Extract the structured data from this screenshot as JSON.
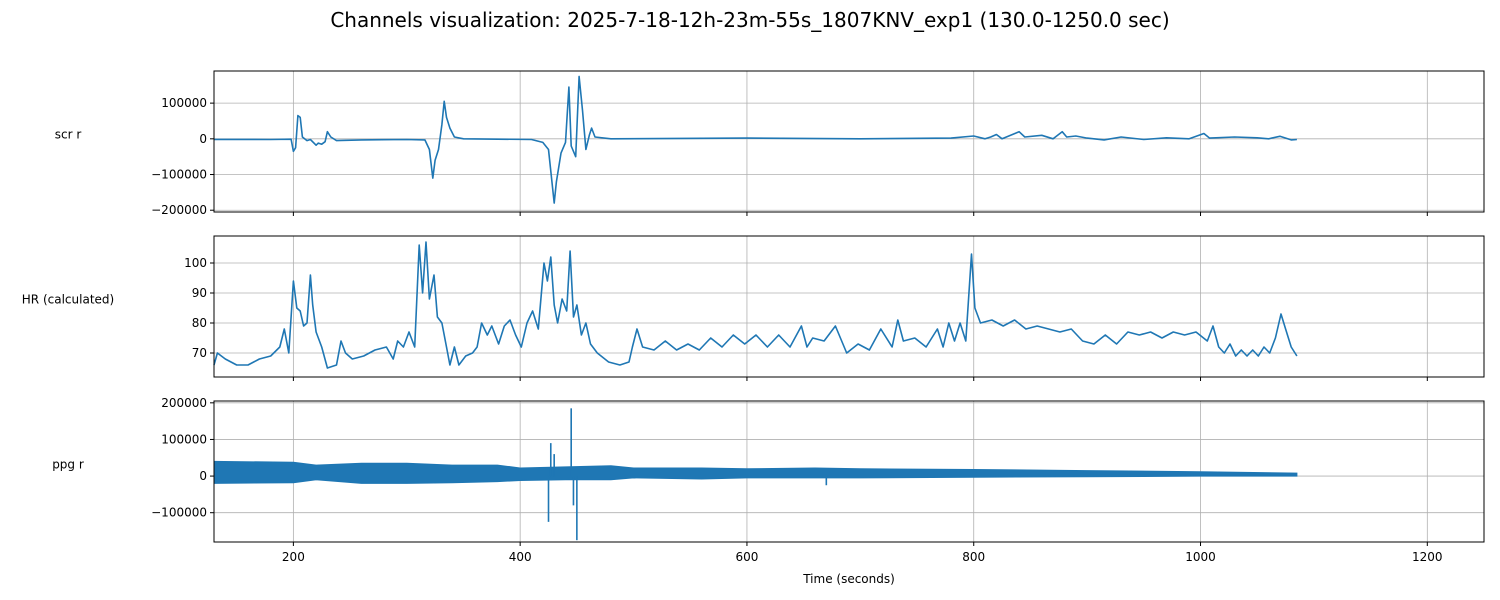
{
  "figure": {
    "title": "Channels visualization: 2025-7-18-12h-23m-55s_1807KNV_exp1 (130.0-1250.0 sec)",
    "xlabel": "Time (seconds)"
  },
  "colors": {
    "line": "#1f77b4",
    "grid": "#b0b0b0",
    "axes": "#000000"
  },
  "chart_data": [
    {
      "type": "line",
      "ylabel": "scr r",
      "xlim": [
        130,
        1250
      ],
      "ylim": [
        -205000,
        190000
      ],
      "xticks": [
        200,
        400,
        600,
        800,
        1000,
        1200
      ],
      "yticks": [
        -200000,
        -100000,
        0,
        100000
      ],
      "grid": true,
      "series": [
        {
          "points": [
            [
              130,
              -1500
            ],
            [
              180,
              -1800
            ],
            [
              198,
              -1000
            ],
            [
              200,
              -35000
            ],
            [
              202,
              -25000
            ],
            [
              204,
              65000
            ],
            [
              206,
              60000
            ],
            [
              208,
              5000
            ],
            [
              212,
              -5000
            ],
            [
              215,
              -2000
            ],
            [
              220,
              -18000
            ],
            [
              222,
              -12000
            ],
            [
              225,
              -15000
            ],
            [
              228,
              -8000
            ],
            [
              230,
              20000
            ],
            [
              233,
              5000
            ],
            [
              238,
              -5000
            ],
            [
              260,
              -3000
            ],
            [
              300,
              -2000
            ],
            [
              316,
              -3000
            ],
            [
              320,
              -30000
            ],
            [
              323,
              -110000
            ],
            [
              325,
              -60000
            ],
            [
              328,
              -30000
            ],
            [
              331,
              40000
            ],
            [
              333,
              105000
            ],
            [
              335,
              60000
            ],
            [
              338,
              30000
            ],
            [
              342,
              5000
            ],
            [
              350,
              0
            ],
            [
              410,
              -2000
            ],
            [
              420,
              -10000
            ],
            [
              425,
              -30000
            ],
            [
              430,
              -180000
            ],
            [
              432,
              -120000
            ],
            [
              436,
              -40000
            ],
            [
              440,
              -10000
            ],
            [
              443,
              145000
            ],
            [
              445,
              -20000
            ],
            [
              449,
              -50000
            ],
            [
              452,
              175000
            ],
            [
              455,
              80000
            ],
            [
              458,
              -30000
            ],
            [
              461,
              10000
            ],
            [
              463,
              30000
            ],
            [
              466,
              5000
            ],
            [
              480,
              0
            ],
            [
              600,
              2000
            ],
            [
              700,
              0
            ],
            [
              780,
              2000
            ],
            [
              800,
              8000
            ],
            [
              810,
              0
            ],
            [
              815,
              5000
            ],
            [
              820,
              12000
            ],
            [
              825,
              0
            ],
            [
              840,
              20000
            ],
            [
              845,
              5000
            ],
            [
              860,
              10000
            ],
            [
              870,
              0
            ],
            [
              878,
              20000
            ],
            [
              882,
              5000
            ],
            [
              890,
              8000
            ],
            [
              900,
              2000
            ],
            [
              915,
              -3000
            ],
            [
              930,
              5000
            ],
            [
              950,
              -2000
            ],
            [
              970,
              3000
            ],
            [
              990,
              0
            ],
            [
              1003,
              15000
            ],
            [
              1008,
              2000
            ],
            [
              1030,
              5000
            ],
            [
              1050,
              3000
            ],
            [
              1060,
              0
            ],
            [
              1070,
              7000
            ],
            [
              1080,
              -3000
            ],
            [
              1085,
              -2000
            ]
          ]
        }
      ]
    },
    {
      "type": "line",
      "ylabel": "HR (calculated)",
      "xlim": [
        130,
        1250
      ],
      "ylim": [
        62,
        109
      ],
      "xticks": [
        200,
        400,
        600,
        800,
        1000,
        1200
      ],
      "yticks": [
        70,
        80,
        90,
        100
      ],
      "grid": true,
      "series": [
        {
          "points": [
            [
              130,
              66
            ],
            [
              133,
              70
            ],
            [
              140,
              68
            ],
            [
              150,
              66
            ],
            [
              160,
              66
            ],
            [
              170,
              68
            ],
            [
              180,
              69
            ],
            [
              188,
              72
            ],
            [
              192,
              78
            ],
            [
              196,
              70
            ],
            [
              200,
              94
            ],
            [
              203,
              85
            ],
            [
              206,
              84
            ],
            [
              209,
              79
            ],
            [
              212,
              80
            ],
            [
              215,
              96
            ],
            [
              217,
              86
            ],
            [
              220,
              77
            ],
            [
              225,
              72
            ],
            [
              230,
              65
            ],
            [
              238,
              66
            ],
            [
              242,
              74
            ],
            [
              246,
              70
            ],
            [
              252,
              68
            ],
            [
              262,
              69
            ],
            [
              272,
              71
            ],
            [
              282,
              72
            ],
            [
              288,
              68
            ],
            [
              292,
              74
            ],
            [
              297,
              72
            ],
            [
              302,
              77
            ],
            [
              307,
              72
            ],
            [
              311,
              106
            ],
            [
              314,
              90
            ],
            [
              317,
              107
            ],
            [
              320,
              88
            ],
            [
              324,
              96
            ],
            [
              327,
              82
            ],
            [
              331,
              80
            ],
            [
              335,
              72
            ],
            [
              338,
              66
            ],
            [
              342,
              72
            ],
            [
              346,
              66
            ],
            [
              352,
              69
            ],
            [
              358,
              70
            ],
            [
              362,
              72
            ],
            [
              366,
              80
            ],
            [
              371,
              76
            ],
            [
              375,
              79
            ],
            [
              381,
              73
            ],
            [
              386,
              79
            ],
            [
              391,
              81
            ],
            [
              396,
              76
            ],
            [
              401,
              72
            ],
            [
              406,
              80
            ],
            [
              411,
              84
            ],
            [
              416,
              78
            ],
            [
              421,
              100
            ],
            [
              424,
              94
            ],
            [
              427,
              102
            ],
            [
              430,
              86
            ],
            [
              433,
              80
            ],
            [
              437,
              88
            ],
            [
              441,
              84
            ],
            [
              444,
              104
            ],
            [
              447,
              82
            ],
            [
              450,
              86
            ],
            [
              454,
              76
            ],
            [
              458,
              80
            ],
            [
              462,
              73
            ],
            [
              468,
              70
            ],
            [
              478,
              67
            ],
            [
              488,
              66
            ],
            [
              496,
              67
            ],
            [
              499,
              72
            ],
            [
              503,
              78
            ],
            [
              508,
              72
            ],
            [
              518,
              71
            ],
            [
              528,
              74
            ],
            [
              538,
              71
            ],
            [
              548,
              73
            ],
            [
              558,
              71
            ],
            [
              568,
              75
            ],
            [
              578,
              72
            ],
            [
              588,
              76
            ],
            [
              598,
              73
            ],
            [
              608,
              76
            ],
            [
              618,
              72
            ],
            [
              628,
              76
            ],
            [
              638,
              72
            ],
            [
              648,
              79
            ],
            [
              653,
              72
            ],
            [
              658,
              75
            ],
            [
              668,
              74
            ],
            [
              678,
              79
            ],
            [
              688,
              70
            ],
            [
              698,
              73
            ],
            [
              708,
              71
            ],
            [
              718,
              78
            ],
            [
              728,
              72
            ],
            [
              733,
              81
            ],
            [
              738,
              74
            ],
            [
              748,
              75
            ],
            [
              758,
              72
            ],
            [
              768,
              78
            ],
            [
              773,
              72
            ],
            [
              778,
              80
            ],
            [
              783,
              74
            ],
            [
              788,
              80
            ],
            [
              793,
              74
            ],
            [
              798,
              103
            ],
            [
              801,
              85
            ],
            [
              806,
              80
            ],
            [
              816,
              81
            ],
            [
              826,
              79
            ],
            [
              836,
              81
            ],
            [
              846,
              78
            ],
            [
              856,
              79
            ],
            [
              866,
              78
            ],
            [
              876,
              77
            ],
            [
              886,
              78
            ],
            [
              896,
              74
            ],
            [
              906,
              73
            ],
            [
              916,
              76
            ],
            [
              926,
              73
            ],
            [
              936,
              77
            ],
            [
              946,
              76
            ],
            [
              956,
              77
            ],
            [
              966,
              75
            ],
            [
              976,
              77
            ],
            [
              986,
              76
            ],
            [
              996,
              77
            ],
            [
              1006,
              74
            ],
            [
              1011,
              79
            ],
            [
              1016,
              72
            ],
            [
              1021,
              70
            ],
            [
              1026,
              73
            ],
            [
              1031,
              69
            ],
            [
              1036,
              71
            ],
            [
              1041,
              69
            ],
            [
              1046,
              71
            ],
            [
              1051,
              69
            ],
            [
              1056,
              72
            ],
            [
              1061,
              70
            ],
            [
              1066,
              75
            ],
            [
              1071,
              83
            ],
            [
              1075,
              78
            ],
            [
              1080,
              72
            ],
            [
              1085,
              69
            ]
          ]
        }
      ]
    },
    {
      "type": "area",
      "ylabel": "ppg r",
      "xlim": [
        130,
        1250
      ],
      "ylim": [
        -180000,
        205000
      ],
      "xticks": [
        200,
        400,
        600,
        800,
        1000,
        1200
      ],
      "yticks": [
        -100000,
        0,
        100000,
        200000
      ],
      "grid": true,
      "series": [
        {
          "envelope": [
            [
              130,
              40000,
              -20000
            ],
            [
              200,
              38000,
              -18000
            ],
            [
              220,
              30000,
              -10000
            ],
            [
              260,
              35000,
              -20000
            ],
            [
              300,
              35000,
              -20000
            ],
            [
              340,
              30000,
              -18000
            ],
            [
              380,
              30000,
              -15000
            ],
            [
              400,
              22000,
              -12000
            ],
            [
              440,
              25000,
              -10000
            ],
            [
              480,
              28000,
              -10000
            ],
            [
              500,
              22000,
              -5000
            ],
            [
              560,
              22000,
              -8000
            ],
            [
              600,
              20000,
              -5000
            ],
            [
              660,
              22000,
              -5000
            ],
            [
              700,
              20000,
              -5000
            ],
            [
              800,
              18000,
              -3000
            ],
            [
              900,
              15000,
              -2000
            ],
            [
              1000,
              12000,
              0
            ],
            [
              1085,
              8000,
              0
            ]
          ]
        }
      ],
      "spikes": [
        [
          425,
          -125000
        ],
        [
          427,
          90000
        ],
        [
          430,
          60000
        ],
        [
          445,
          185000
        ],
        [
          447,
          -80000
        ],
        [
          450,
          -175000
        ],
        [
          670,
          -25000
        ]
      ]
    }
  ]
}
